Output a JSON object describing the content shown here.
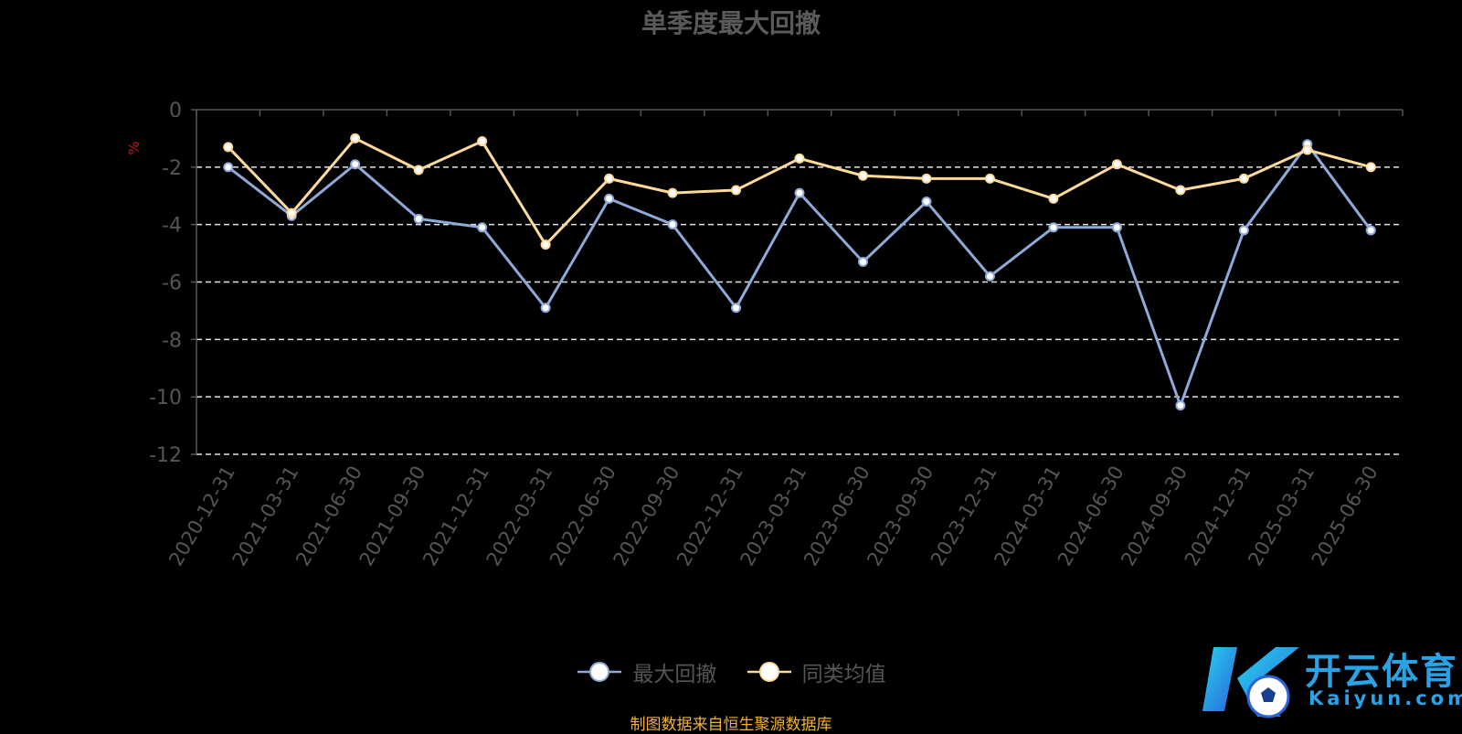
{
  "chart_data": {
    "type": "line",
    "title": "单季度最大回撤",
    "ylabel": "%",
    "ylim": [
      -12,
      0
    ],
    "yticks": [
      0,
      -2,
      -4,
      -6,
      -8,
      -10,
      -12
    ],
    "categories": [
      "2020-12-31",
      "2021-03-31",
      "2021-06-30",
      "2021-09-30",
      "2021-12-31",
      "2022-03-31",
      "2022-06-30",
      "2022-09-30",
      "2022-12-31",
      "2023-03-31",
      "2023-06-30",
      "2023-09-30",
      "2023-12-31",
      "2024-03-31",
      "2024-06-30",
      "2024-09-30",
      "2024-12-31",
      "2025-03-31",
      "2025-06-30"
    ],
    "series": [
      {
        "name": "最大回撤",
        "color": "#8fa9d8",
        "values": [
          -2.0,
          -3.7,
          -1.9,
          -3.8,
          -4.1,
          -6.9,
          -3.1,
          -4.0,
          -6.9,
          -2.9,
          -5.3,
          -3.2,
          -5.8,
          -4.1,
          -4.1,
          -10.3,
          -4.2,
          -1.2,
          -4.2
        ]
      },
      {
        "name": "同类均值",
        "color": "#fdd99b",
        "values": [
          -1.3,
          -3.6,
          -1.0,
          -2.1,
          -1.1,
          -4.7,
          -2.4,
          -2.9,
          -2.8,
          -1.7,
          -2.3,
          -2.4,
          -2.4,
          -3.1,
          -1.9,
          -2.8,
          -2.4,
          -1.4,
          -2.0
        ]
      }
    ],
    "grid": true,
    "legend_position": "bottom"
  },
  "source_note": "制图数据来自恒生聚源数据库",
  "logo": {
    "cn": "开云体育",
    "en": "Kaiyun.com"
  }
}
